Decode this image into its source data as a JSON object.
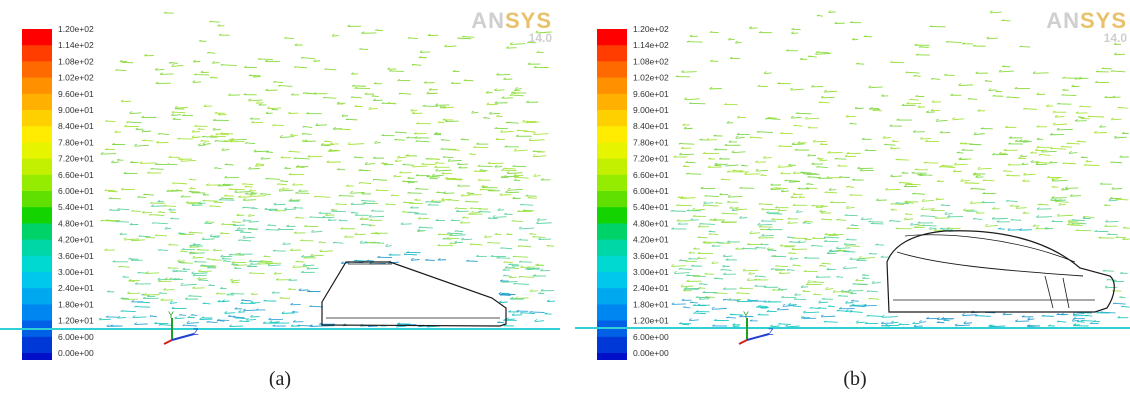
{
  "panels": [
    {
      "id": "a",
      "caption": "(a)",
      "logo": {
        "brand_prefix": "AN",
        "brand_suffix": "SYS",
        "version": "14.0"
      },
      "colorbar_labels": [
        "1.20e+02",
        "1.14e+02",
        "1.08e+02",
        "1.02e+02",
        "9.60e+01",
        "9.00e+01",
        "8.40e+01",
        "7.80e+01",
        "7.20e+01",
        "6.60e+01",
        "6.00e+01",
        "5.40e+01",
        "4.80e+01",
        "4.20e+01",
        "3.60e+01",
        "3.00e+01",
        "2.40e+01",
        "1.80e+01",
        "1.20e+01",
        "6.00e+00",
        "0.00e+00"
      ]
    },
    {
      "id": "b",
      "caption": "(b)",
      "logo": {
        "brand_prefix": "AN",
        "brand_suffix": "SYS",
        "version": "14.0"
      },
      "colorbar_labels": [
        "1.20e+02",
        "1.14e+02",
        "1.08e+02",
        "1.02e+02",
        "9.60e+01",
        "9.00e+01",
        "8.40e+01",
        "7.80e+01",
        "7.20e+01",
        "6.60e+01",
        "6.00e+01",
        "5.40e+01",
        "4.80e+01",
        "4.20e+01",
        "3.60e+01",
        "3.00e+01",
        "2.40e+01",
        "1.80e+01",
        "1.20e+01",
        "6.00e+00",
        "0.00e+00"
      ]
    }
  ],
  "colorbar_colors": [
    "#ff0000",
    "#ff3d00",
    "#ff6a00",
    "#ff9000",
    "#ffb000",
    "#ffd000",
    "#ffec00",
    "#e6f400",
    "#c2f000",
    "#96ec00",
    "#5fe000",
    "#14d400",
    "#00d26a",
    "#00d7a6",
    "#00d8d2",
    "#00c8ec",
    "#00a8f0",
    "#0086f0",
    "#0060e6",
    "#0038d8",
    "#0010c8"
  ],
  "axis_triad": {
    "y_label": "Y",
    "z_label": "Z"
  }
}
